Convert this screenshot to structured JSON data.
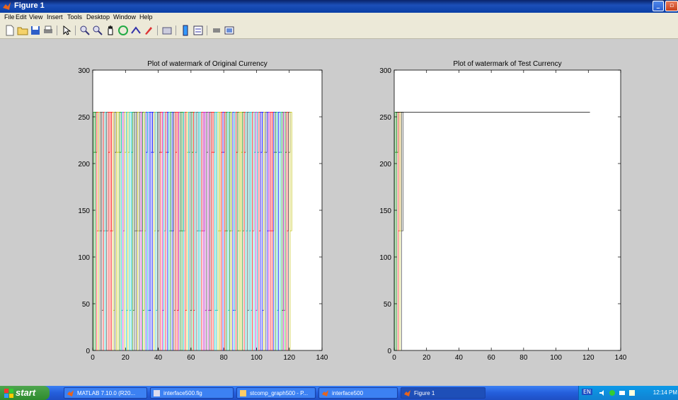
{
  "window": {
    "title": "Figure 1"
  },
  "menu": [
    "File",
    "Edit",
    "View",
    "Insert",
    "Tools",
    "Desktop",
    "Window",
    "Help"
  ],
  "toolbar_icons": [
    "new-figure-icon",
    "open-file-icon",
    "save-icon",
    "print-icon",
    "select-arrow-icon",
    "zoom-in-icon",
    "zoom-out-icon",
    "pan-icon",
    "rotate-3d-icon",
    "data-cursor-icon",
    "brush-icon",
    "link-plot-icon",
    "colorbar-icon",
    "legend-icon",
    "hide-plot-tools-icon",
    "show-plot-tools-icon"
  ],
  "colors": {
    "palette": [
      "#0000ff",
      "#008000",
      "#ff0000",
      "#00bfbf",
      "#bf00bf",
      "#bfbf00",
      "#404040"
    ]
  },
  "chart_data": [
    {
      "type": "line",
      "title": "Plot of watermark of Original Currency",
      "xlabel": "",
      "ylabel": "",
      "xlim": [
        0,
        140
      ],
      "ylim": [
        0,
        300
      ],
      "xticks": [
        0,
        20,
        40,
        60,
        80,
        100,
        120,
        140
      ],
      "yticks": [
        0,
        50,
        100,
        150,
        200,
        250,
        300
      ],
      "series_count": 121,
      "x": [
        1,
        2,
        3,
        4,
        5,
        6,
        7,
        8,
        9,
        10,
        11,
        12,
        13,
        14,
        15,
        16,
        17,
        18,
        19,
        20,
        21,
        22,
        23,
        24,
        25,
        26,
        27,
        28,
        29,
        30,
        31,
        32,
        33,
        34,
        35,
        36,
        37,
        38,
        39,
        40,
        41,
        42,
        43,
        44,
        45,
        46,
        47,
        48,
        49,
        50,
        51,
        52,
        53,
        54,
        55,
        56,
        57,
        58,
        59,
        60,
        61,
        62,
        63,
        64,
        65,
        66,
        67,
        68,
        69,
        70,
        71,
        72,
        73,
        74,
        75,
        76,
        77,
        78,
        79,
        80,
        81,
        82,
        83,
        84,
        85,
        86,
        87,
        88,
        89,
        90,
        91,
        92,
        93,
        94,
        95,
        96,
        97,
        98,
        99,
        100,
        101,
        102,
        103,
        104,
        105,
        106,
        107,
        108,
        109,
        110,
        111,
        112,
        113,
        114,
        115,
        116,
        117,
        118,
        119,
        120,
        121
      ],
      "levels": [
        0,
        43,
        128,
        212,
        255
      ]
    },
    {
      "type": "line",
      "title": "Plot of watermark of Test Currency",
      "xlabel": "",
      "ylabel": "",
      "xlim": [
        0,
        140
      ],
      "ylim": [
        0,
        300
      ],
      "xticks": [
        0,
        20,
        40,
        60,
        80,
        100,
        120,
        140
      ],
      "yticks": [
        0,
        50,
        100,
        150,
        200,
        250,
        300
      ],
      "x": [
        1,
        2,
        3,
        4,
        5
      ],
      "levels": [
        0,
        43,
        128,
        212,
        255
      ],
      "flat_series": {
        "x": [
          1,
          121
        ],
        "y": 255
      }
    }
  ],
  "taskbar": {
    "start": "start",
    "tasks": [
      "MATLAB 7.10.0 (R20...",
      "interface500.fig",
      "stcomp_graph500 - P...",
      "interface500",
      "Figure 1"
    ],
    "lang": "EN",
    "clock": "12:14 PM"
  }
}
